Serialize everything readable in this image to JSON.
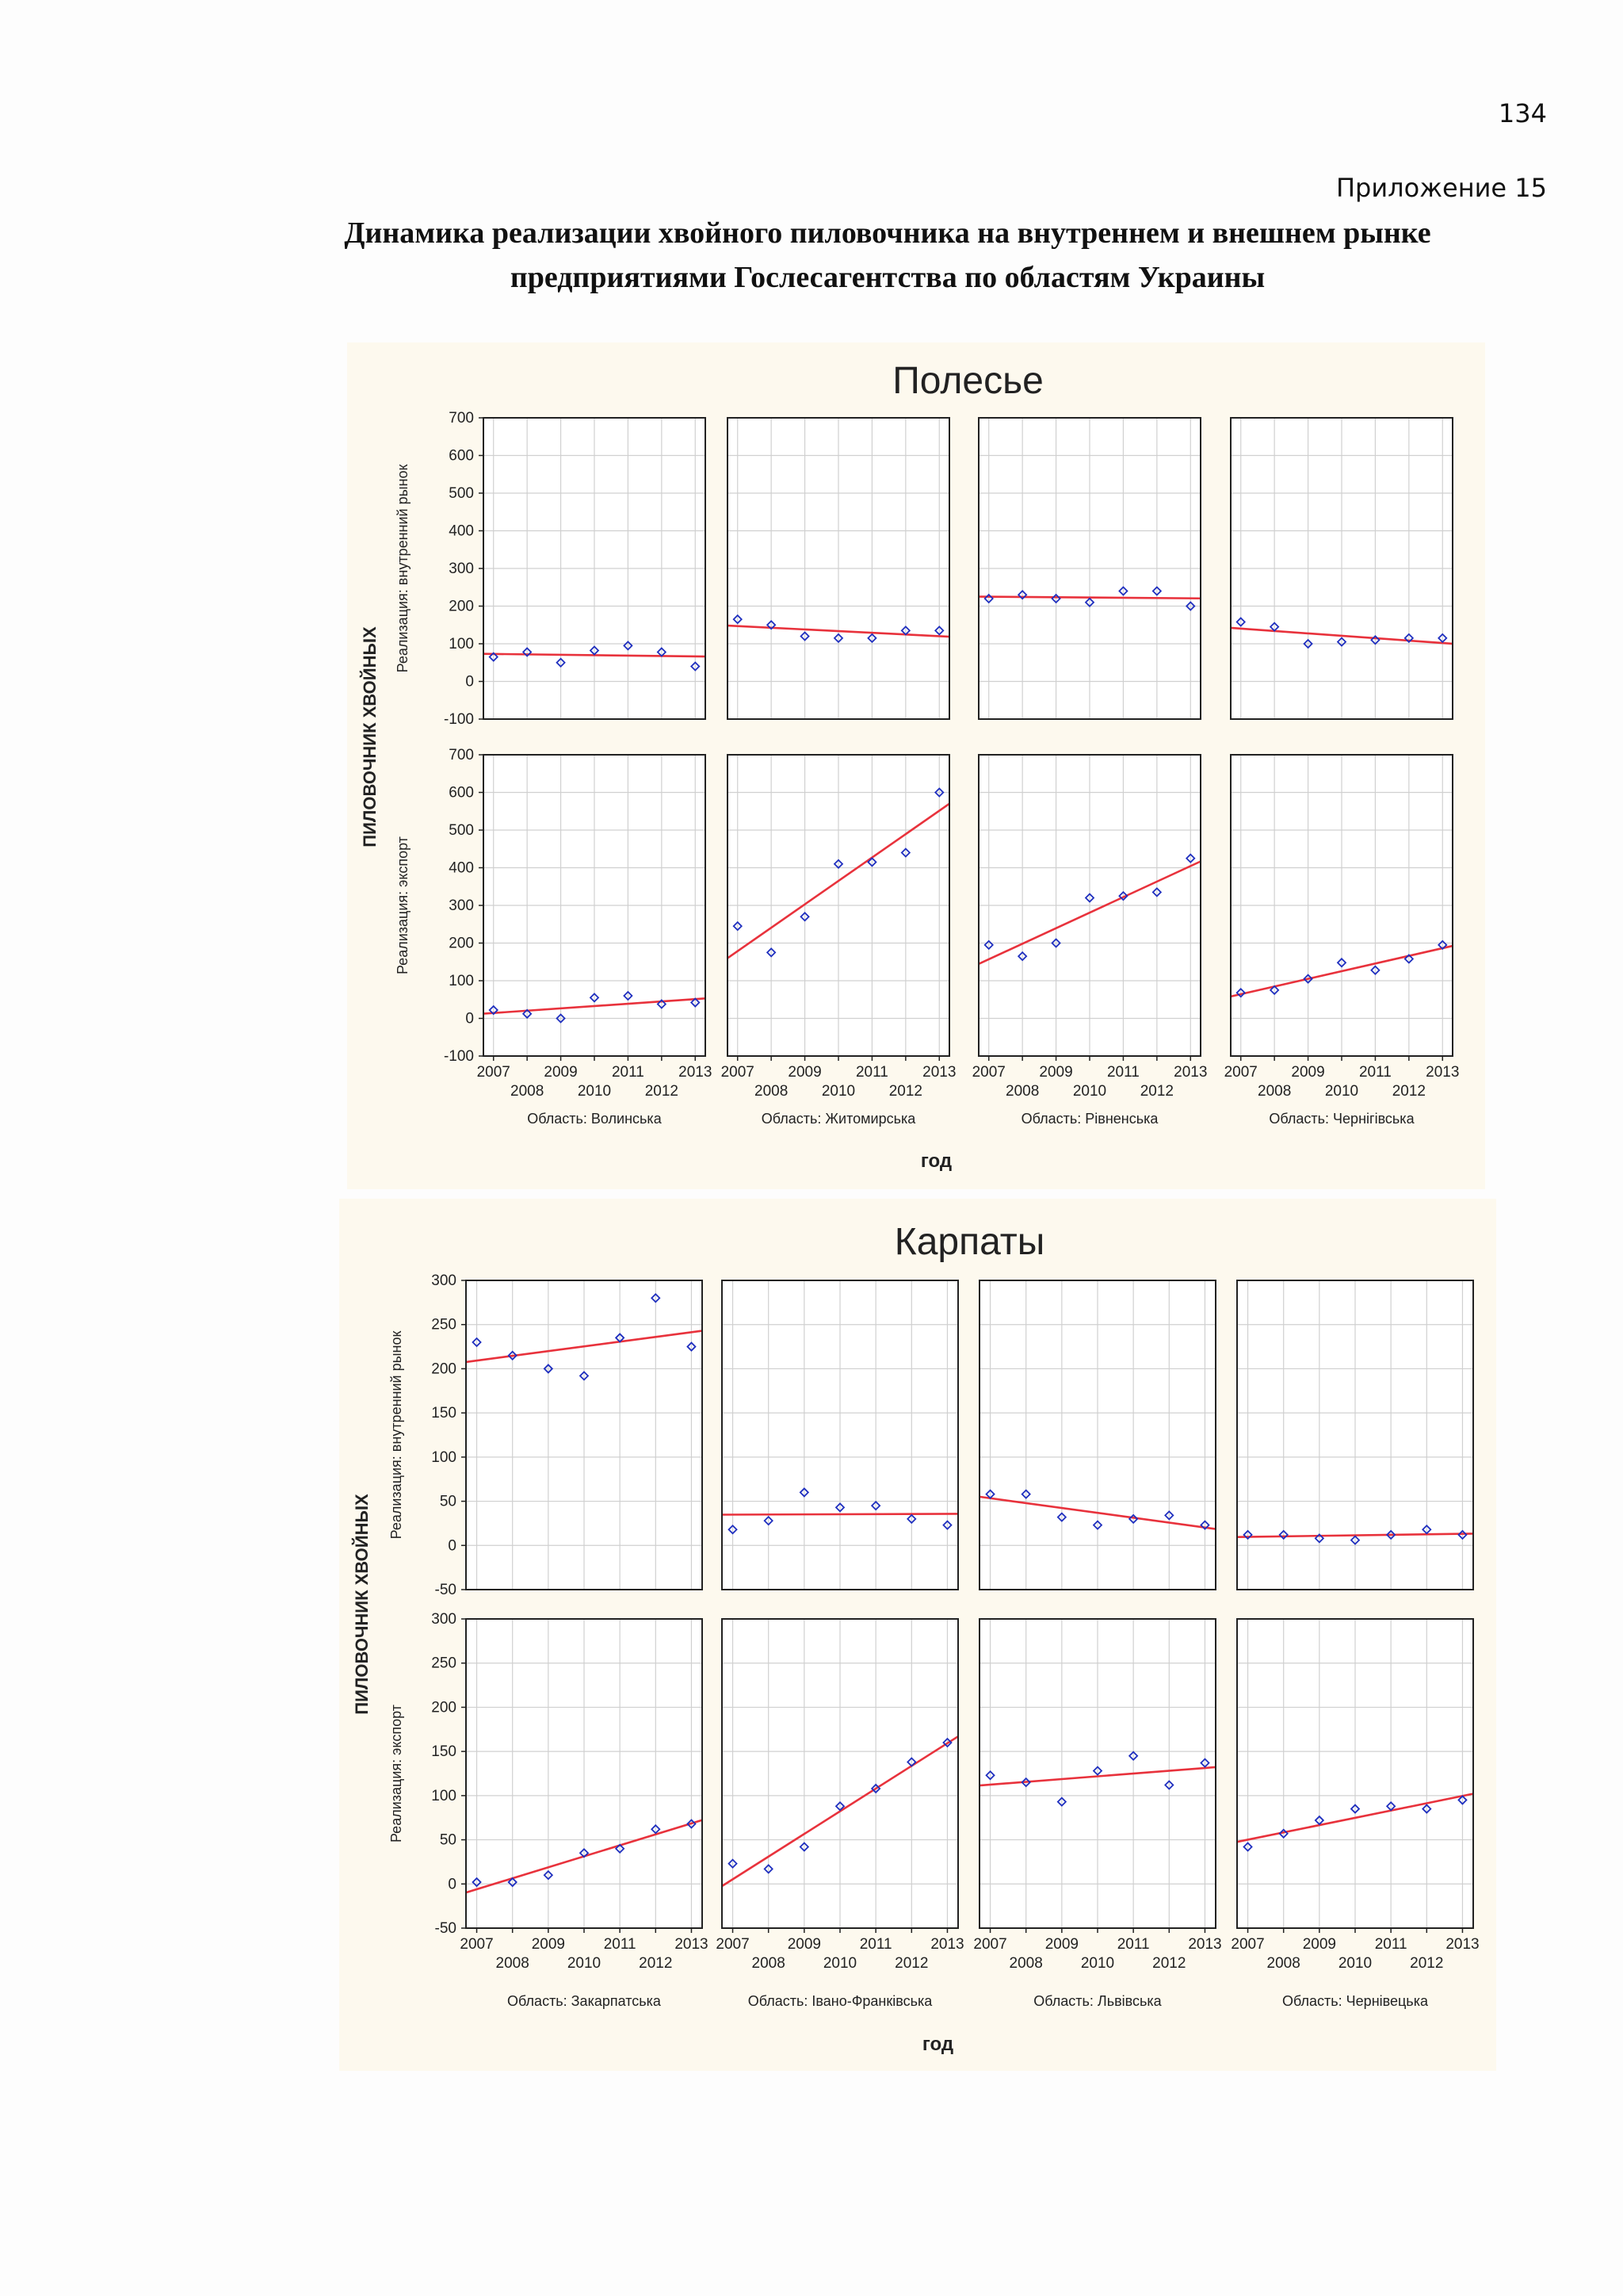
{
  "page": {
    "number": "134",
    "appendix": "Приложение 15",
    "title_line1": "Динамика реализации хвойного пиловочника на внутреннем и внешнем рынке",
    "title_line2": "предприятиями Гослесагентства  по областям Украины"
  },
  "colors": {
    "trend": "#e8323c",
    "points": "#1f2fbf",
    "frame": "#222222",
    "grid": "#d0d0d0",
    "panel_bg": "#fdf9ee"
  },
  "chart_data": [
    {
      "type": "scatter",
      "title": "Полесье",
      "xlabel": "год",
      "ylabel": "ПИЛОВОЧНИК ХВОЙНЫХ",
      "row_labels": [
        "Реализация: внутренний рынок",
        "Реализация: экспорт"
      ],
      "x": [
        2007,
        2008,
        2009,
        2010,
        2011,
        2012,
        2013
      ],
      "x_ticks_top": [
        "2007",
        "2009",
        "2011",
        "2013"
      ],
      "x_ticks_bottom": [
        "2008",
        "2010",
        "2012"
      ],
      "ylim": [
        -100,
        700
      ],
      "y_ticks": [
        -100,
        0,
        100,
        200,
        300,
        400,
        500,
        600,
        700
      ],
      "panels": [
        {
          "region": "Область: Волинська",
          "domestic": [
            65,
            78,
            50,
            82,
            95,
            78,
            40
          ],
          "export": [
            22,
            12,
            0,
            55,
            60,
            38,
            42
          ]
        },
        {
          "region": "Область: Житомирська",
          "domestic": [
            165,
            150,
            120,
            115,
            115,
            135,
            135
          ],
          "export": [
            245,
            175,
            270,
            410,
            415,
            440,
            600
          ]
        },
        {
          "region": "Область: Рівненська",
          "domestic": [
            220,
            230,
            220,
            210,
            240,
            240,
            200
          ],
          "export": [
            195,
            165,
            200,
            320,
            325,
            335,
            425
          ]
        },
        {
          "region": "Область: Чернігівська",
          "domestic": [
            158,
            145,
            100,
            105,
            110,
            115,
            115
          ],
          "export": [
            68,
            75,
            105,
            148,
            128,
            158,
            195
          ]
        }
      ]
    },
    {
      "type": "scatter",
      "title": "Карпаты",
      "xlabel": "год",
      "ylabel": "ПИЛОВОЧНИК ХВОЙНЫХ",
      "row_labels": [
        "Реализация: внутренний рынок",
        "Реализация: экспорт"
      ],
      "x": [
        2007,
        2008,
        2009,
        2010,
        2011,
        2012,
        2013
      ],
      "x_ticks_top": [
        "2007",
        "2009",
        "2011",
        "2013"
      ],
      "x_ticks_bottom": [
        "2008",
        "2010",
        "2012"
      ],
      "ylim": [
        -50,
        300
      ],
      "y_ticks": [
        -50,
        0,
        50,
        100,
        150,
        200,
        250,
        300
      ],
      "panels": [
        {
          "region": "Область: Закарпатська",
          "domestic": [
            230,
            215,
            200,
            192,
            235,
            280,
            225
          ],
          "export": [
            2,
            2,
            10,
            35,
            40,
            62,
            68
          ]
        },
        {
          "region": "Область: Івано-Франківська",
          "domestic": [
            18,
            28,
            60,
            43,
            45,
            30,
            23
          ],
          "export": [
            23,
            17,
            42,
            88,
            108,
            138,
            160
          ]
        },
        {
          "region": "Область: Львівська",
          "domestic": [
            58,
            58,
            32,
            23,
            30,
            34,
            23
          ],
          "export": [
            123,
            115,
            93,
            128,
            145,
            112,
            137
          ]
        },
        {
          "region": "Область: Чернівецька",
          "domestic": [
            12,
            12,
            8,
            6,
            12,
            18,
            12
          ],
          "export": [
            42,
            57,
            72,
            85,
            88,
            85,
            95
          ]
        }
      ]
    }
  ]
}
